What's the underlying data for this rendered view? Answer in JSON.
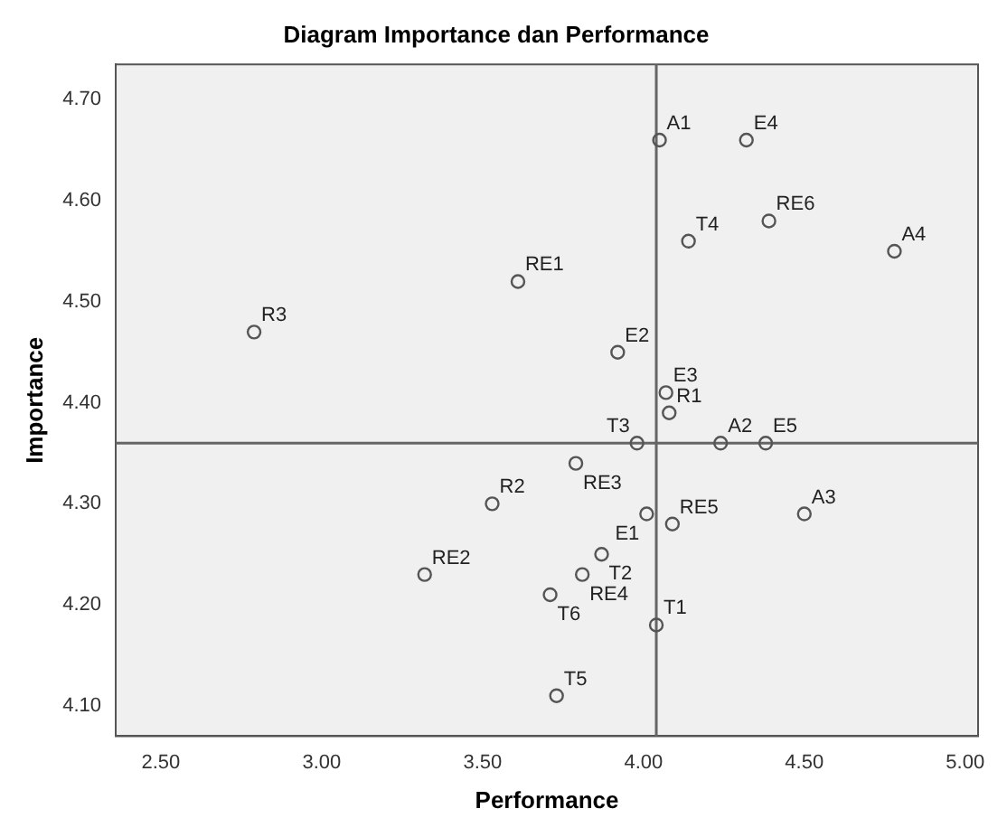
{
  "chart_data": {
    "type": "scatter",
    "title": "Diagram Importance dan Performance",
    "xlabel": "Performance",
    "ylabel": "Importance",
    "x": [
      4.05,
      4.32,
      4.39,
      4.14,
      4.78,
      3.61,
      2.79,
      3.92,
      4.07,
      4.08,
      3.98,
      4.24,
      4.38,
      3.79,
      3.53,
      4.01,
      4.09,
      4.5,
      3.87,
      3.32,
      3.81,
      3.71,
      4.04,
      3.73
    ],
    "values": [
      4.66,
      4.66,
      4.58,
      4.56,
      4.55,
      4.52,
      4.47,
      4.45,
      4.41,
      4.39,
      4.36,
      4.36,
      4.36,
      4.34,
      4.3,
      4.29,
      4.28,
      4.29,
      4.25,
      4.23,
      4.23,
      4.21,
      4.18,
      4.11
    ],
    "color": "#555555",
    "marker": "circle",
    "annotations": [
      {
        "text": "A1",
        "x": 4.05,
        "y": 4.66
      },
      {
        "text": "E4",
        "x": 4.32,
        "y": 4.66
      },
      {
        "text": "RE6",
        "x": 4.39,
        "y": 4.58
      },
      {
        "text": "T4",
        "x": 4.14,
        "y": 4.56
      },
      {
        "text": "A4",
        "x": 4.78,
        "y": 4.55
      },
      {
        "text": "RE1",
        "x": 3.61,
        "y": 4.52
      },
      {
        "text": "R3",
        "x": 2.79,
        "y": 4.47
      },
      {
        "text": "E2",
        "x": 3.92,
        "y": 4.45
      },
      {
        "text": "E3",
        "x": 4.07,
        "y": 4.41
      },
      {
        "text": "R1",
        "x": 4.08,
        "y": 4.39
      },
      {
        "text": "T3",
        "x": 3.98,
        "y": 4.36
      },
      {
        "text": "A2",
        "x": 4.24,
        "y": 4.36
      },
      {
        "text": "E5",
        "x": 4.38,
        "y": 4.36
      },
      {
        "text": "RE3",
        "x": 3.79,
        "y": 4.34
      },
      {
        "text": "R2",
        "x": 3.53,
        "y": 4.3
      },
      {
        "text": "E1",
        "x": 4.01,
        "y": 4.29
      },
      {
        "text": "RE5",
        "x": 4.09,
        "y": 4.28
      },
      {
        "text": "A3",
        "x": 4.5,
        "y": 4.29
      },
      {
        "text": "T2",
        "x": 3.87,
        "y": 4.25
      },
      {
        "text": "RE2",
        "x": 3.32,
        "y": 4.23
      },
      {
        "text": "RE4",
        "x": 3.81,
        "y": 4.23
      },
      {
        "text": "T6",
        "x": 3.71,
        "y": 4.21
      },
      {
        "text": "T1",
        "x": 4.04,
        "y": 4.18
      },
      {
        "text": "T5",
        "x": 3.73,
        "y": 4.11
      }
    ],
    "ref_lines": [
      {
        "axis": "x",
        "value": 4.04,
        "color": "#666666"
      },
      {
        "axis": "y",
        "value": 4.36,
        "color": "#666666"
      }
    ],
    "xlim": [
      2.36,
      5.04
    ],
    "ylim": [
      4.07,
      4.735
    ],
    "xticks": [
      {
        "value": 2.5,
        "label": "2.50"
      },
      {
        "value": 3,
        "label": "3.00"
      },
      {
        "value": 3.5,
        "label": "3.50"
      },
      {
        "value": 4,
        "label": "4.00"
      },
      {
        "value": 4.5,
        "label": "4.50"
      },
      {
        "value": 5,
        "label": "5.00"
      }
    ],
    "yticks": [
      {
        "value": 4.1,
        "label": "4.10"
      },
      {
        "value": 4.2,
        "label": "4.20"
      },
      {
        "value": 4.3,
        "label": "4.30"
      },
      {
        "value": 4.4,
        "label": "4.40"
      },
      {
        "value": 4.5,
        "label": "4.50"
      },
      {
        "value": 4.6,
        "label": "4.60"
      },
      {
        "value": 4.7,
        "label": "4.70"
      }
    ],
    "grid": false,
    "legend": false
  }
}
